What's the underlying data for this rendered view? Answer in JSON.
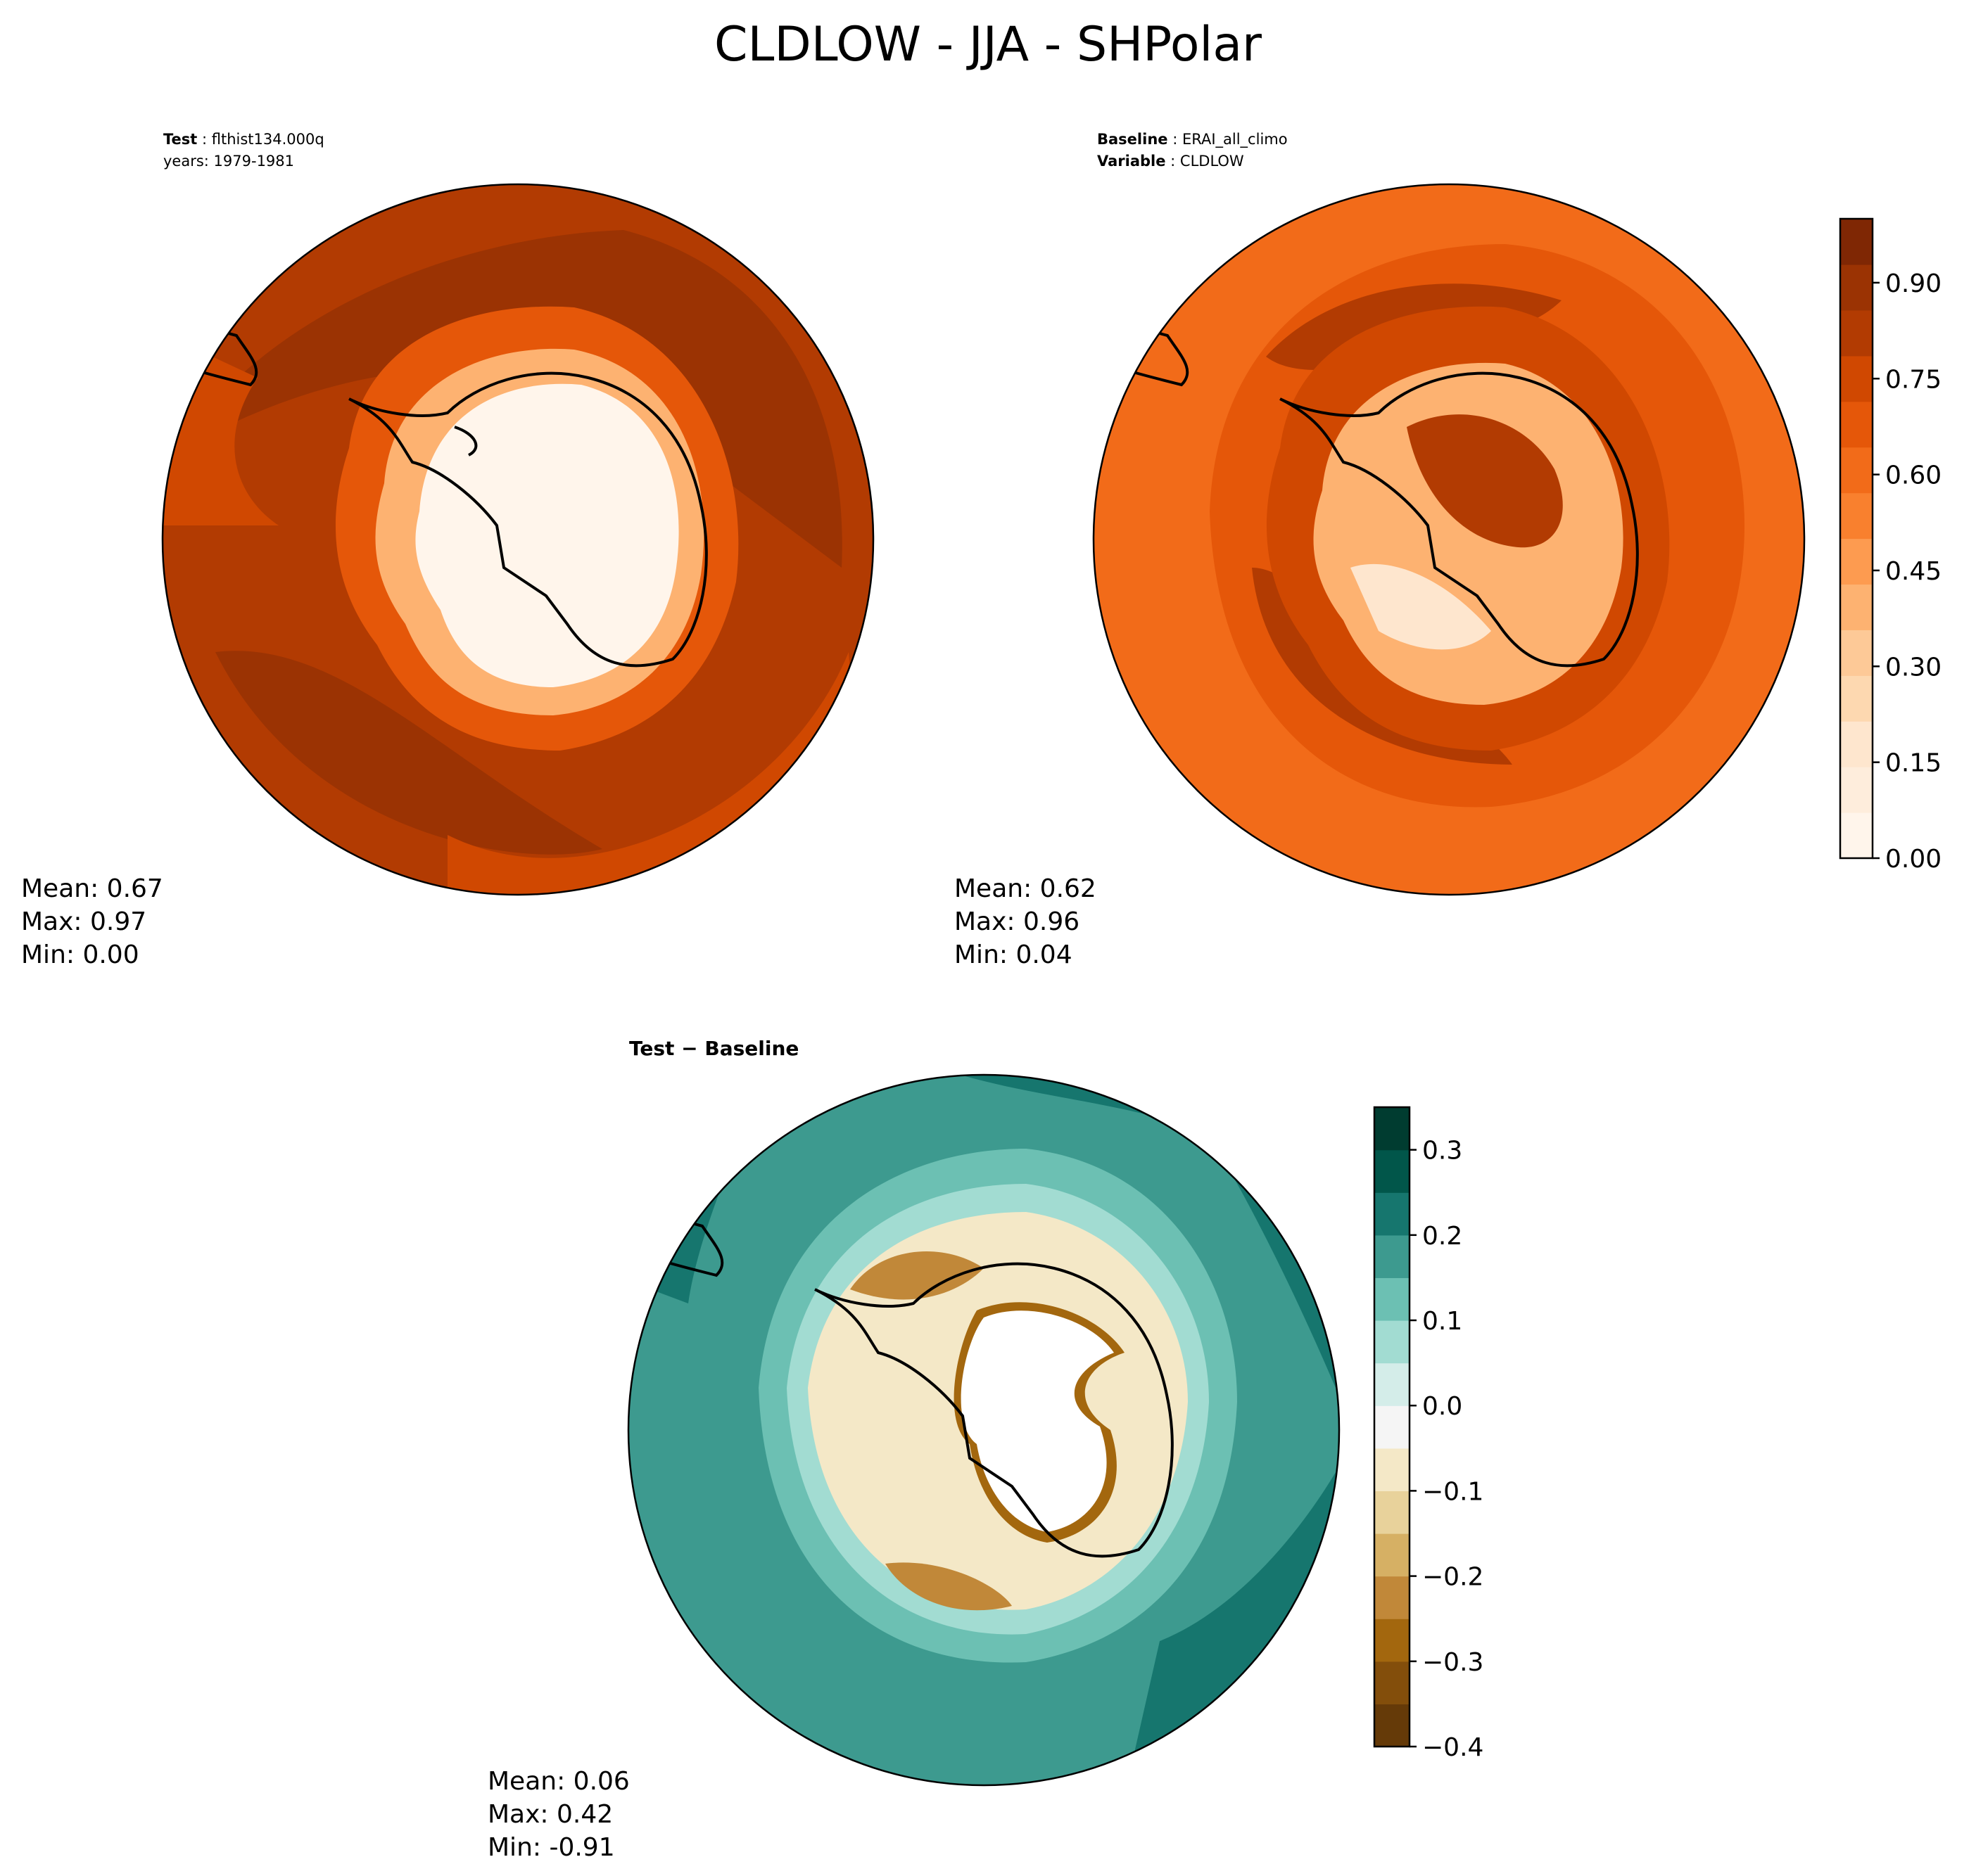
{
  "figure": {
    "title": "CLDLOW - JJA - SHPolar"
  },
  "test_panel": {
    "name_label": "Test",
    "name_value": "flthist134.000q",
    "years_line": "years: 1979-1981",
    "stats": {
      "mean": "Mean:  0.67",
      "max": "Max:  0.97",
      "min": "Min:  0.00"
    }
  },
  "baseline_panel": {
    "name_label": "Baseline",
    "name_value": "ERAI_all_climo",
    "variable_label": "Variable",
    "variable_value": "CLDLOW",
    "stats": {
      "mean": "Mean:  0.62",
      "max": "Max:  0.96",
      "min": "Min:  0.04"
    }
  },
  "diff_panel": {
    "title": "Test − Baseline",
    "stats": {
      "mean": "Mean:  0.06",
      "max": "Max:  0.42",
      "min": "Min: -0.91"
    }
  },
  "chart_data": [
    {
      "type": "heatmap",
      "map": "south-polar-stereographic",
      "panel": "test",
      "colormap": "Oranges",
      "colorbar_range": [
        0.0,
        1.0
      ],
      "colorbar_ticks": [
        "0.00",
        "0.15",
        "0.30",
        "0.45",
        "0.60",
        "0.75",
        "0.90"
      ],
      "mean": 0.67,
      "max": 0.97,
      "min": 0.0
    },
    {
      "type": "heatmap",
      "map": "south-polar-stereographic",
      "panel": "baseline",
      "colormap": "Oranges",
      "colorbar_range": [
        0.0,
        1.0
      ],
      "colorbar_ticks": [
        "0.00",
        "0.15",
        "0.30",
        "0.45",
        "0.60",
        "0.75",
        "0.90"
      ],
      "mean": 0.62,
      "max": 0.96,
      "min": 0.04
    },
    {
      "type": "heatmap",
      "map": "south-polar-stereographic",
      "panel": "difference",
      "colormap": "BrBG",
      "colorbar_range": [
        -0.4,
        0.35
      ],
      "colorbar_ticks": [
        "−0.4",
        "−0.3",
        "−0.2",
        "−0.1",
        "0.0",
        "0.1",
        "0.2",
        "0.3"
      ],
      "mean": 0.06,
      "max": 0.42,
      "min": -0.91
    }
  ],
  "colors": {
    "orange_levels": [
      "#fff5eb",
      "#feeddc",
      "#fee6ce",
      "#fdd8b0",
      "#fdc997",
      "#fdb271",
      "#fd9b50",
      "#f9802e",
      "#f26b19",
      "#e55709",
      "#d04801",
      "#b23b02",
      "#9b3303",
      "#7f2704"
    ],
    "brbg_levels": [
      "#653a08",
      "#834e0b",
      "#a3670e",
      "#c18839",
      "#d6b064",
      "#e8d29b",
      "#f4e8c7",
      "#f5f5f5",
      "#d4ede9",
      "#a2dcd2",
      "#6cc0b3",
      "#3d9a8f",
      "#16766e",
      "#01564a",
      "#003c30"
    ],
    "coastline": "#000000"
  }
}
